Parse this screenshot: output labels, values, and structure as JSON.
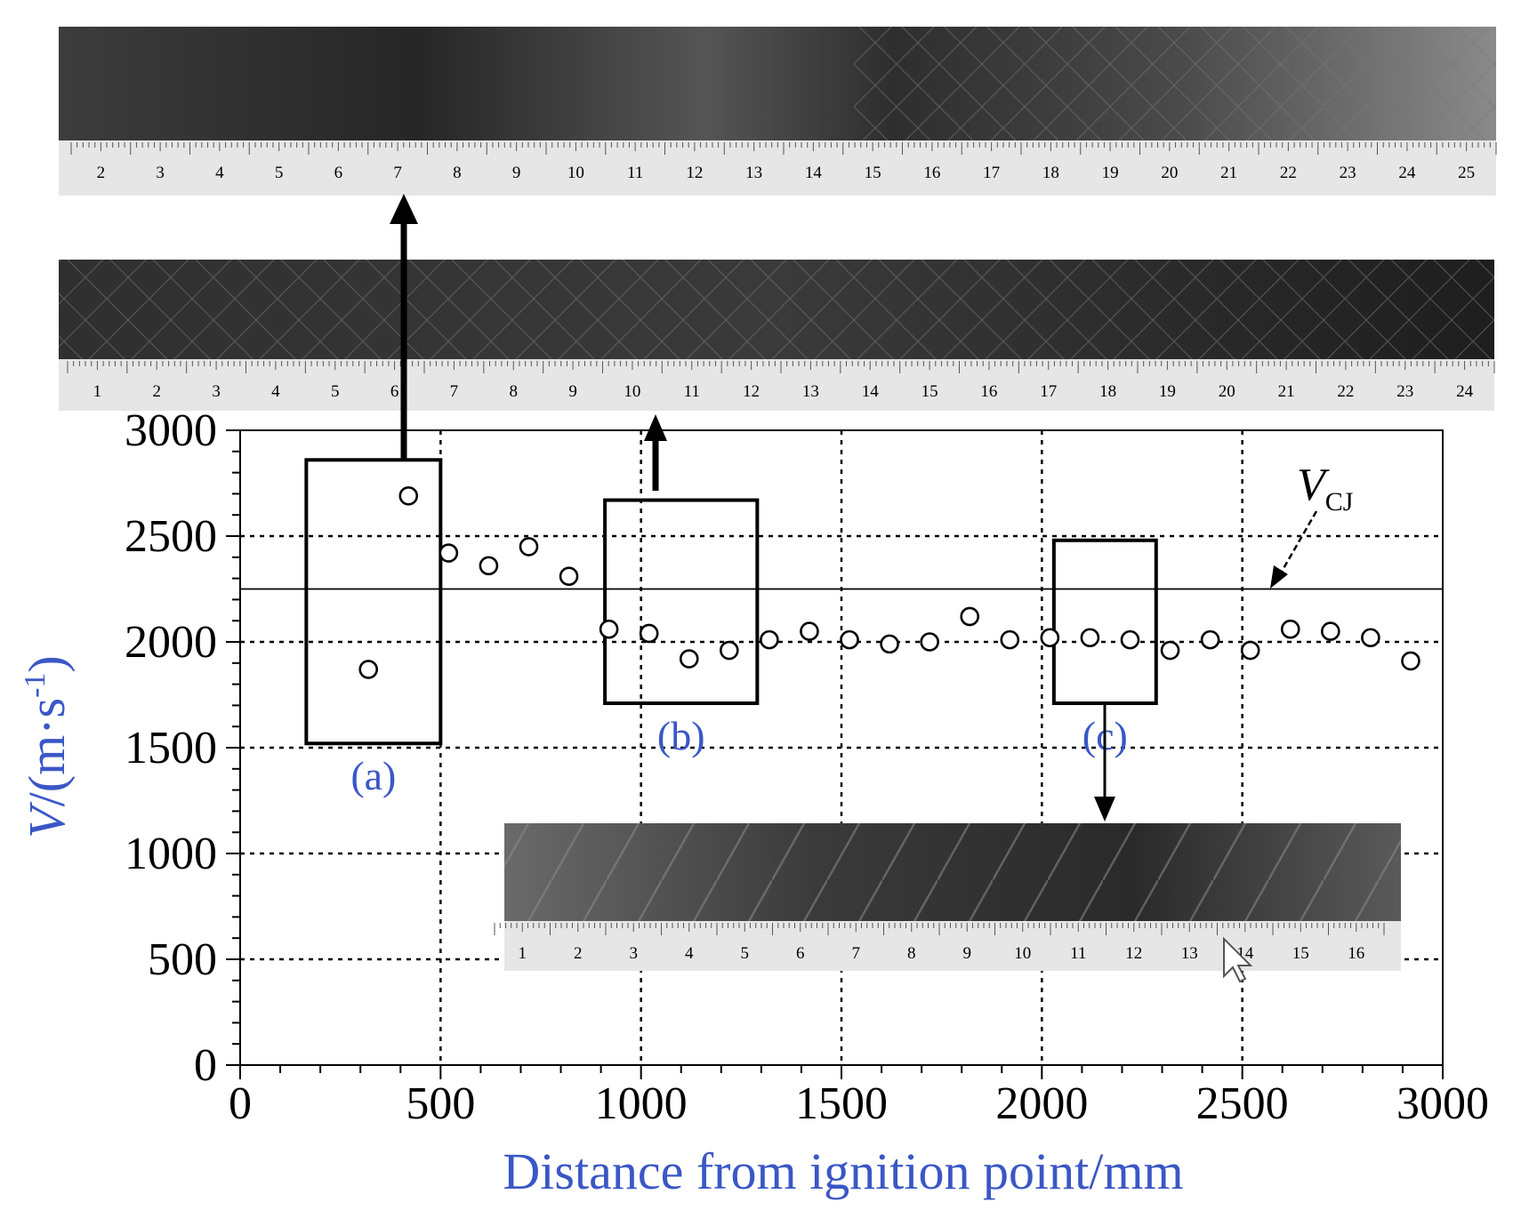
{
  "colors": {
    "axis_label": "#3a57c6",
    "box_label": "#3a57c6",
    "data": "#000000",
    "grid": "#000000"
  },
  "chart_data": {
    "type": "scatter",
    "xlabel": "Distance from ignition point/mm",
    "ylabel_prefix": "V",
    "ylabel_units": "/(m·s",
    "ylabel_exp": "-1",
    "ylabel_close": ")",
    "xlim": [
      0,
      3000
    ],
    "ylim": [
      0,
      3000
    ],
    "xticks": [
      "0",
      "500",
      "1000",
      "1500",
      "2000",
      "2500",
      "3000"
    ],
    "yticks": [
      "0",
      "500",
      "1000",
      "1500",
      "2000",
      "2500",
      "3000"
    ],
    "grid": true,
    "marker": "open-circle",
    "series": [
      {
        "points": [
          [
            320,
            1870
          ],
          [
            420,
            2690
          ],
          [
            520,
            2420
          ],
          [
            620,
            2360
          ],
          [
            720,
            2450
          ],
          [
            820,
            2310
          ],
          [
            920,
            2060
          ],
          [
            1020,
            2040
          ],
          [
            1120,
            1920
          ],
          [
            1220,
            1960
          ],
          [
            1320,
            2010
          ],
          [
            1420,
            2050
          ],
          [
            1520,
            2010
          ],
          [
            1620,
            1990
          ],
          [
            1720,
            2000
          ],
          [
            1820,
            2120
          ],
          [
            1920,
            2010
          ],
          [
            2020,
            2020
          ],
          [
            2120,
            2020
          ],
          [
            2220,
            2010
          ],
          [
            2320,
            1960
          ],
          [
            2420,
            2010
          ],
          [
            2520,
            1960
          ],
          [
            2620,
            2060
          ],
          [
            2720,
            2050
          ],
          [
            2820,
            2020
          ],
          [
            2920,
            1910
          ]
        ]
      }
    ],
    "reference_line": {
      "y": 2250,
      "label_main": "V",
      "label_sub": "CJ"
    },
    "annotations": [
      {
        "label": "(a)",
        "x0": 165,
        "x1": 500,
        "y0": 1520,
        "y1": 2860
      },
      {
        "label": "(b)",
        "x0": 910,
        "x1": 1290,
        "y0": 1710,
        "y1": 2670
      },
      {
        "label": "(c)",
        "x0": 2030,
        "x1": 2285,
        "y0": 1710,
        "y1": 2480
      }
    ]
  },
  "photos": {
    "top": {
      "ruler_numbers": [
        "2",
        "3",
        "4",
        "5",
        "6",
        "7",
        "8",
        "9",
        "10",
        "11",
        "12",
        "13",
        "14",
        "15",
        "16",
        "17",
        "18",
        "19",
        "20",
        "21",
        "22",
        "23",
        "24",
        "25"
      ]
    },
    "middle": {
      "ruler_numbers": [
        "1",
        "2",
        "3",
        "4",
        "5",
        "6",
        "7",
        "8",
        "9",
        "10",
        "11",
        "12",
        "13",
        "14",
        "15",
        "16",
        "17",
        "18",
        "19",
        "20",
        "21",
        "22",
        "23",
        "24"
      ]
    },
    "bottom": {
      "ruler_numbers": [
        "1",
        "2",
        "3",
        "4",
        "5",
        "6",
        "7",
        "8",
        "9",
        "10",
        "11",
        "12",
        "13",
        "14",
        "15",
        "16"
      ]
    }
  }
}
